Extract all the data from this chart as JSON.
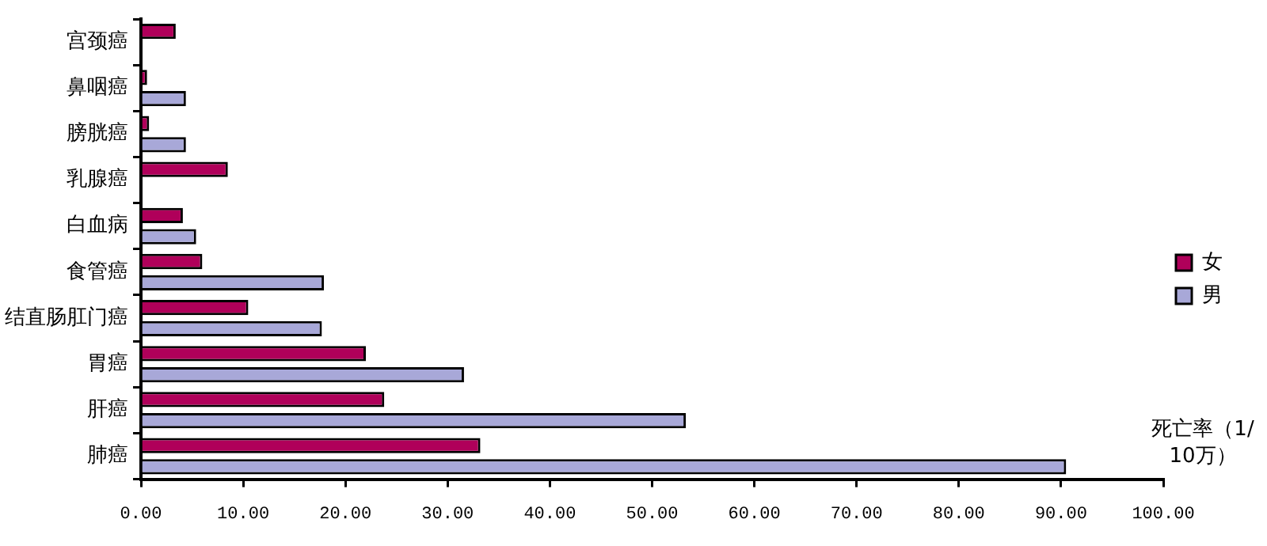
{
  "chart_data": {
    "type": "bar",
    "orientation": "horizontal",
    "xlabel": "死亡率（1/10万）",
    "categories": [
      "宫颈癌",
      "鼻咽癌",
      "膀胱癌",
      "乳腺癌",
      "白血病",
      "食管癌",
      "结直肠肛门癌",
      "胃癌",
      "肝癌",
      "肺癌"
    ],
    "series": [
      {
        "name": "女",
        "color": "#b0005a",
        "values": [
          3.4,
          0.6,
          0.8,
          8.5,
          4.1,
          6.0,
          10.5,
          22.0,
          23.8,
          33.2
        ]
      },
      {
        "name": "男",
        "color": "#a8a8d8",
        "values": [
          null,
          4.4,
          4.4,
          null,
          5.4,
          17.9,
          17.7,
          31.6,
          53.3,
          90.5
        ]
      }
    ],
    "xlim": [
      0,
      100
    ],
    "xticks": [
      {
        "value": 0,
        "label": "0.00"
      },
      {
        "value": 10,
        "label": "10.00"
      },
      {
        "value": 20,
        "label": "20.00"
      },
      {
        "value": 30,
        "label": "30.00"
      },
      {
        "value": 40,
        "label": "40.00"
      },
      {
        "value": 50,
        "label": "50.00"
      },
      {
        "value": 60,
        "label": "60.00"
      },
      {
        "value": 70,
        "label": "70.00"
      },
      {
        "value": 80,
        "label": "80.00"
      },
      {
        "value": 90,
        "label": "90.00"
      },
      {
        "value": 100,
        "label": "100.00"
      }
    ],
    "grid": false,
    "legend": "right"
  }
}
